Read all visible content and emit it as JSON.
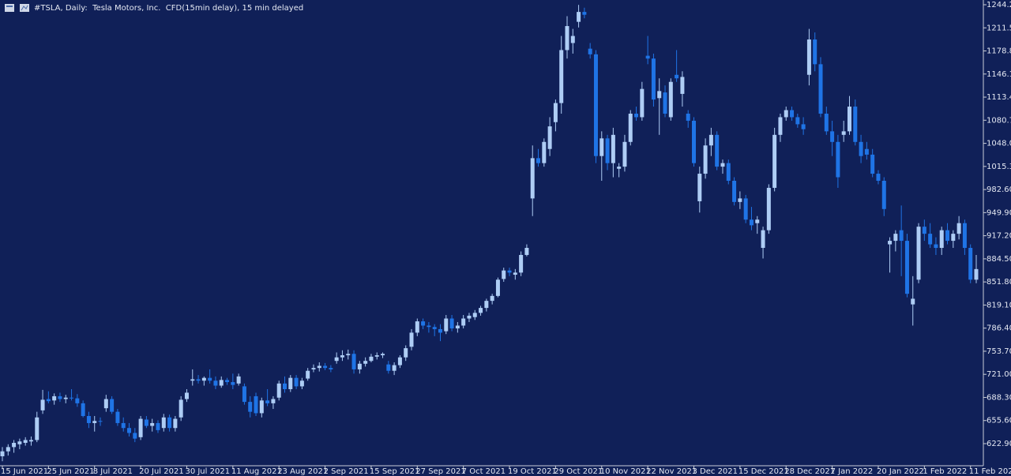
{
  "chart_data": {
    "type": "candlestick",
    "title": "#TSLA, Daily:  Tesla Motors, Inc.  CFD(15min delay), 15 min delayed",
    "up_color": "#aecdf5",
    "down_color": "#1f74e6",
    "categories": [
      "15 Jun 2021",
      null,
      null,
      null,
      null,
      null,
      null,
      null,
      "25 Jun 2021",
      null,
      null,
      null,
      null,
      null,
      null,
      null,
      "8 Jul 2021",
      null,
      null,
      null,
      null,
      null,
      null,
      null,
      "20 Jul 2021",
      null,
      null,
      null,
      null,
      null,
      null,
      null,
      "30 Jul 2021",
      null,
      null,
      null,
      null,
      null,
      null,
      null,
      "11 Aug 2021",
      null,
      null,
      null,
      null,
      null,
      null,
      null,
      "23 Aug 2021",
      null,
      null,
      null,
      null,
      null,
      null,
      null,
      "2 Sep 2021",
      null,
      null,
      null,
      null,
      null,
      null,
      null,
      "15 Sep 2021",
      null,
      null,
      null,
      null,
      null,
      null,
      null,
      "27 Sep 2021",
      null,
      null,
      null,
      null,
      null,
      null,
      null,
      "7 Oct 2021",
      null,
      null,
      null,
      null,
      null,
      null,
      null,
      "19 Oct 2021",
      null,
      null,
      null,
      null,
      null,
      null,
      null,
      "29 Oct 2021",
      null,
      null,
      null,
      null,
      null,
      null,
      null,
      "10 Nov 2021",
      null,
      null,
      null,
      null,
      null,
      null,
      null,
      "22 Nov 2021",
      null,
      null,
      null,
      null,
      null,
      null,
      null,
      "3 Dec 2021",
      null,
      null,
      null,
      null,
      null,
      null,
      null,
      "15 Dec 2021",
      null,
      null,
      null,
      null,
      null,
      null,
      null,
      "28 Dec 2021",
      null,
      null,
      null,
      null,
      null,
      null,
      null,
      "7 Jan 2022",
      null,
      null,
      null,
      null,
      null,
      null,
      null,
      "20 Jan 2022",
      null,
      null,
      null,
      null,
      null,
      null,
      null,
      "1 Feb 2022",
      null,
      null,
      null,
      null,
      null,
      null,
      null,
      "11 Feb 2022",
      null
    ],
    "ohlc": [
      [
        605,
        618,
        598,
        612
      ],
      [
        612,
        622,
        606,
        618
      ],
      [
        618,
        628,
        610,
        624
      ],
      [
        622,
        630,
        615,
        626
      ],
      [
        624,
        632,
        620,
        628
      ],
      [
        626,
        633,
        620,
        628
      ],
      [
        628,
        668,
        625,
        660
      ],
      [
        670,
        699,
        665,
        685
      ],
      [
        686,
        697,
        680,
        683
      ],
      [
        684,
        694,
        678,
        690
      ],
      [
        690,
        695,
        682,
        686
      ],
      [
        686,
        692,
        680,
        688
      ],
      [
        688,
        700,
        684,
        687
      ],
      [
        687,
        693,
        675,
        680
      ],
      [
        680,
        684,
        660,
        662
      ],
      [
        662,
        668,
        645,
        652
      ],
      [
        652,
        662,
        640,
        655
      ],
      [
        655,
        660,
        648,
        654
      ],
      [
        673,
        692,
        668,
        686
      ],
      [
        686,
        690,
        665,
        668
      ],
      [
        668,
        672,
        648,
        652
      ],
      [
        652,
        660,
        640,
        645
      ],
      [
        645,
        652,
        633,
        638
      ],
      [
        638,
        645,
        625,
        630
      ],
      [
        632,
        662,
        628,
        658
      ],
      [
        657,
        662,
        645,
        648
      ],
      [
        648,
        658,
        640,
        652
      ],
      [
        652,
        656,
        638,
        642
      ],
      [
        645,
        665,
        640,
        660
      ],
      [
        660,
        664,
        640,
        645
      ],
      [
        645,
        662,
        640,
        658
      ],
      [
        660,
        690,
        655,
        685
      ],
      [
        686,
        700,
        682,
        695
      ],
      [
        712,
        728,
        705,
        714
      ],
      [
        714,
        720,
        708,
        712
      ],
      [
        712,
        718,
        705,
        716
      ],
      [
        716,
        728,
        708,
        712
      ],
      [
        712,
        718,
        700,
        705
      ],
      [
        705,
        718,
        702,
        713
      ],
      [
        713,
        716,
        706,
        710
      ],
      [
        710,
        722,
        700,
        706
      ],
      [
        708,
        722,
        705,
        718
      ],
      [
        704,
        708,
        678,
        682
      ],
      [
        682,
        690,
        660,
        668
      ],
      [
        690,
        695,
        662,
        666
      ],
      [
        666,
        688,
        660,
        684
      ],
      [
        684,
        700,
        676,
        680
      ],
      [
        680,
        690,
        672,
        686
      ],
      [
        688,
        712,
        684,
        708
      ],
      [
        708,
        718,
        695,
        700
      ],
      [
        700,
        720,
        696,
        716
      ],
      [
        716,
        720,
        700,
        704
      ],
      [
        704,
        716,
        700,
        712
      ],
      [
        715,
        730,
        712,
        726
      ],
      [
        728,
        735,
        724,
        730
      ],
      [
        730,
        738,
        725,
        733
      ],
      [
        733,
        737,
        727,
        730
      ],
      [
        730,
        734,
        724,
        728
      ],
      [
        740,
        752,
        736,
        745
      ],
      [
        745,
        755,
        740,
        748
      ],
      [
        748,
        756,
        742,
        750
      ],
      [
        750,
        755,
        722,
        728
      ],
      [
        728,
        740,
        722,
        736
      ],
      [
        736,
        745,
        732,
        740
      ],
      [
        740,
        750,
        738,
        746
      ],
      [
        746,
        752,
        742,
        748
      ],
      [
        748,
        752,
        744,
        750
      ],
      [
        735,
        740,
        722,
        726
      ],
      [
        726,
        738,
        720,
        734
      ],
      [
        734,
        748,
        730,
        745
      ],
      [
        745,
        762,
        740,
        758
      ],
      [
        760,
        785,
        755,
        780
      ],
      [
        780,
        800,
        775,
        796
      ],
      [
        796,
        800,
        785,
        790
      ],
      [
        790,
        795,
        780,
        788
      ],
      [
        788,
        792,
        775,
        785
      ],
      [
        785,
        792,
        768,
        780
      ],
      [
        782,
        805,
        778,
        800
      ],
      [
        800,
        805,
        782,
        786
      ],
      [
        786,
        795,
        780,
        790
      ],
      [
        790,
        805,
        786,
        800
      ],
      [
        800,
        808,
        795,
        804
      ],
      [
        802,
        812,
        798,
        808
      ],
      [
        808,
        818,
        804,
        815
      ],
      [
        815,
        828,
        810,
        825
      ],
      [
        825,
        835,
        820,
        832
      ],
      [
        832,
        858,
        830,
        855
      ],
      [
        856,
        872,
        852,
        868
      ],
      [
        868,
        872,
        860,
        865
      ],
      [
        862,
        870,
        855,
        865
      ],
      [
        865,
        895,
        860,
        890
      ],
      [
        890,
        905,
        888,
        900
      ],
      [
        970,
        1045,
        945,
        1027
      ],
      [
        1027,
        1040,
        1015,
        1020
      ],
      [
        1020,
        1055,
        1015,
        1050
      ],
      [
        1040,
        1085,
        1030,
        1072
      ],
      [
        1078,
        1110,
        1065,
        1105
      ],
      [
        1105,
        1200,
        1090,
        1180
      ],
      [
        1180,
        1228,
        1168,
        1214
      ],
      [
        1190,
        1210,
        1175,
        1200
      ],
      [
        1220,
        1244,
        1212,
        1234
      ],
      [
        1234,
        1240,
        1225,
        1230
      ],
      [
        1182,
        1190,
        1168,
        1174
      ],
      [
        1174,
        1180,
        1020,
        1030
      ],
      [
        1030,
        1065,
        995,
        1055
      ],
      [
        1055,
        1060,
        1010,
        1020
      ],
      [
        1020,
        1070,
        1000,
        1060
      ],
      [
        1012,
        1020,
        1000,
        1015
      ],
      [
        1015,
        1060,
        1008,
        1050
      ],
      [
        1050,
        1095,
        1045,
        1090
      ],
      [
        1090,
        1100,
        1080,
        1085
      ],
      [
        1085,
        1135,
        1080,
        1125
      ],
      [
        1172,
        1200,
        1160,
        1168
      ],
      [
        1168,
        1175,
        1100,
        1110
      ],
      [
        1112,
        1140,
        1060,
        1122
      ],
      [
        1120,
        1130,
        1085,
        1090
      ],
      [
        1085,
        1140,
        1080,
        1135
      ],
      [
        1145,
        1180,
        1135,
        1140
      ],
      [
        1118,
        1150,
        1100,
        1142
      ],
      [
        1090,
        1095,
        1070,
        1080
      ],
      [
        1080,
        1085,
        1015,
        1020
      ],
      [
        966,
        1015,
        950,
        1005
      ],
      [
        1005,
        1055,
        998,
        1045
      ],
      [
        1045,
        1070,
        1030,
        1060
      ],
      [
        1060,
        1065,
        1010,
        1015
      ],
      [
        1015,
        1025,
        1005,
        1020
      ],
      [
        1020,
        1025,
        990,
        995
      ],
      [
        995,
        1000,
        960,
        965
      ],
      [
        965,
        980,
        955,
        970
      ],
      [
        970,
        975,
        935,
        940
      ],
      [
        940,
        958,
        925,
        932
      ],
      [
        935,
        945,
        920,
        940
      ],
      [
        900,
        930,
        885,
        925
      ],
      [
        925,
        990,
        920,
        985
      ],
      [
        985,
        1070,
        980,
        1060
      ],
      [
        1060,
        1090,
        1050,
        1085
      ],
      [
        1085,
        1100,
        1080,
        1095
      ],
      [
        1095,
        1100,
        1080,
        1085
      ],
      [
        1085,
        1090,
        1070,
        1075
      ],
      [
        1075,
        1085,
        1060,
        1068
      ],
      [
        1145,
        1210,
        1130,
        1195
      ],
      [
        1195,
        1205,
        1150,
        1160
      ],
      [
        1160,
        1170,
        1085,
        1090
      ],
      [
        1090,
        1100,
        1060,
        1065
      ],
      [
        1065,
        1080,
        1030,
        1050
      ],
      [
        1050,
        1060,
        985,
        1000
      ],
      [
        1060,
        1080,
        1050,
        1065
      ],
      [
        1065,
        1115,
        1060,
        1100
      ],
      [
        1100,
        1110,
        1045,
        1050
      ],
      [
        1050,
        1060,
        1020,
        1030
      ],
      [
        1040,
        1050,
        1025,
        1032
      ],
      [
        1032,
        1040,
        1000,
        1005
      ],
      [
        1005,
        1010,
        990,
        995
      ],
      [
        995,
        1000,
        945,
        955
      ],
      [
        905,
        915,
        865,
        910
      ],
      [
        910,
        925,
        895,
        920
      ],
      [
        925,
        960,
        860,
        910
      ],
      [
        910,
        920,
        830,
        835
      ],
      [
        820,
        860,
        790,
        828
      ],
      [
        855,
        935,
        850,
        930
      ],
      [
        930,
        940,
        910,
        920
      ],
      [
        920,
        935,
        900,
        905
      ],
      [
        905,
        915,
        890,
        900
      ],
      [
        900,
        930,
        890,
        925
      ],
      [
        925,
        935,
        905,
        910
      ],
      [
        910,
        925,
        900,
        920
      ],
      [
        920,
        945,
        912,
        935
      ],
      [
        935,
        940,
        890,
        900
      ],
      [
        900,
        905,
        850,
        855
      ],
      [
        855,
        890,
        850,
        870
      ]
    ],
    "ylim": [
      591.6,
      1250.9
    ],
    "yticks": [
      {
        "value": 1244.2,
        "label": "1244.20"
      },
      {
        "value": 1211.5,
        "label": "1211.50"
      },
      {
        "value": 1178.8,
        "label": "1178.80"
      },
      {
        "value": 1146.1,
        "label": "1146.10"
      },
      {
        "value": 1113.4,
        "label": "1113.40"
      },
      {
        "value": 1080.7,
        "label": "1080.70"
      },
      {
        "value": 1048,
        "label": "1048.00"
      },
      {
        "value": 1015.3,
        "label": "1015.30"
      },
      {
        "value": 982.6,
        "label": "982.60"
      },
      {
        "value": 949.9,
        "label": "949.90"
      },
      {
        "value": 917.2,
        "label": "917.20"
      },
      {
        "value": 884.5,
        "label": "884.50"
      },
      {
        "value": 851.8,
        "label": "851.80"
      },
      {
        "value": 819.1,
        "label": "819.10"
      },
      {
        "value": 786.4,
        "label": "786.40"
      },
      {
        "value": 753.7,
        "label": "753.70"
      },
      {
        "value": 721,
        "label": "721.00"
      },
      {
        "value": 688.3,
        "label": "688.30"
      },
      {
        "value": 655.6,
        "label": "655.60"
      },
      {
        "value": 622.9,
        "label": "622.90"
      }
    ]
  }
}
